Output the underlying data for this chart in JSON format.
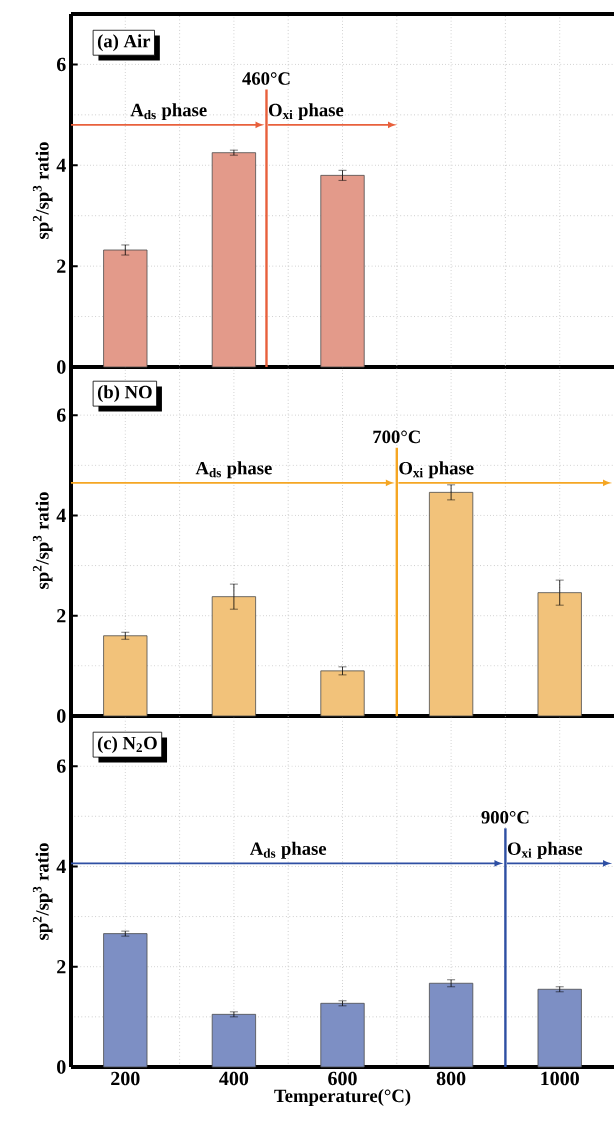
{
  "chart_data": [
    {
      "type": "bar",
      "title": "(a) Air",
      "ylabel": "sp$^{2}$/sp$^{3}$ ratio",
      "x": [
        200,
        400,
        600
      ],
      "values": [
        2.32,
        4.25,
        3.8
      ],
      "errors": [
        0.1,
        0.05,
        0.1
      ],
      "color": "#e39a8a",
      "xlim": [
        100,
        1100
      ],
      "ylim": [
        0,
        7
      ],
      "xticks": [
        200,
        400,
        600,
        800,
        1000
      ],
      "yticks": [
        0,
        2,
        4,
        6
      ],
      "grid": true,
      "tick_labels": "y",
      "ref_lines": [
        {
          "axis": "x",
          "value": 460,
          "label": "460°C",
          "color": "#e8603c"
        }
      ],
      "annotations": [
        "A$_{ds}$ phase",
        "O$_{xi}$ phase"
      ]
    },
    {
      "type": "bar",
      "title": "(b) NO",
      "ylabel": "sp$^{2}$/sp$^{3}$ ratio",
      "x": [
        200,
        400,
        600,
        800,
        1000
      ],
      "values": [
        1.6,
        2.38,
        0.9,
        4.46,
        2.46
      ],
      "errors": [
        0.07,
        0.25,
        0.08,
        0.15,
        0.25
      ],
      "color": "#f2c27a",
      "xlim": [
        100,
        1100
      ],
      "ylim": [
        0,
        7
      ],
      "xticks": [
        200,
        400,
        600,
        800,
        1000
      ],
      "yticks": [
        0,
        2,
        4,
        6
      ],
      "grid": true,
      "tick_labels": "y",
      "ref_lines": [
        {
          "axis": "x",
          "value": 700,
          "label": "700°C",
          "color": "#f5a623"
        }
      ],
      "annotations": [
        "A$_{ds}$ phase",
        "O$_{xi}$ phase"
      ]
    },
    {
      "type": "bar",
      "title": "(c) N$_{2}$O",
      "xlabel": "Temperature(°C)",
      "ylabel": "sp$^{2}$/sp$^{3}$ ratio",
      "x": [
        200,
        400,
        600,
        800,
        1000
      ],
      "values": [
        2.66,
        1.05,
        1.27,
        1.67,
        1.55
      ],
      "errors": [
        0.05,
        0.05,
        0.05,
        0.07,
        0.05
      ],
      "color": "#7d8fc4",
      "xlim": [
        100,
        1100
      ],
      "ylim": [
        0,
        7
      ],
      "xticks": [
        200,
        400,
        600,
        800,
        1000
      ],
      "yticks": [
        0,
        2,
        4,
        6
      ],
      "grid": true,
      "ref_lines": [
        {
          "axis": "x",
          "value": 900,
          "label": "900°C",
          "color": "#2e4fa3"
        }
      ],
      "annotations": [
        "A$_{ds}$ phase",
        "O$_{xi}$ phase"
      ]
    }
  ]
}
